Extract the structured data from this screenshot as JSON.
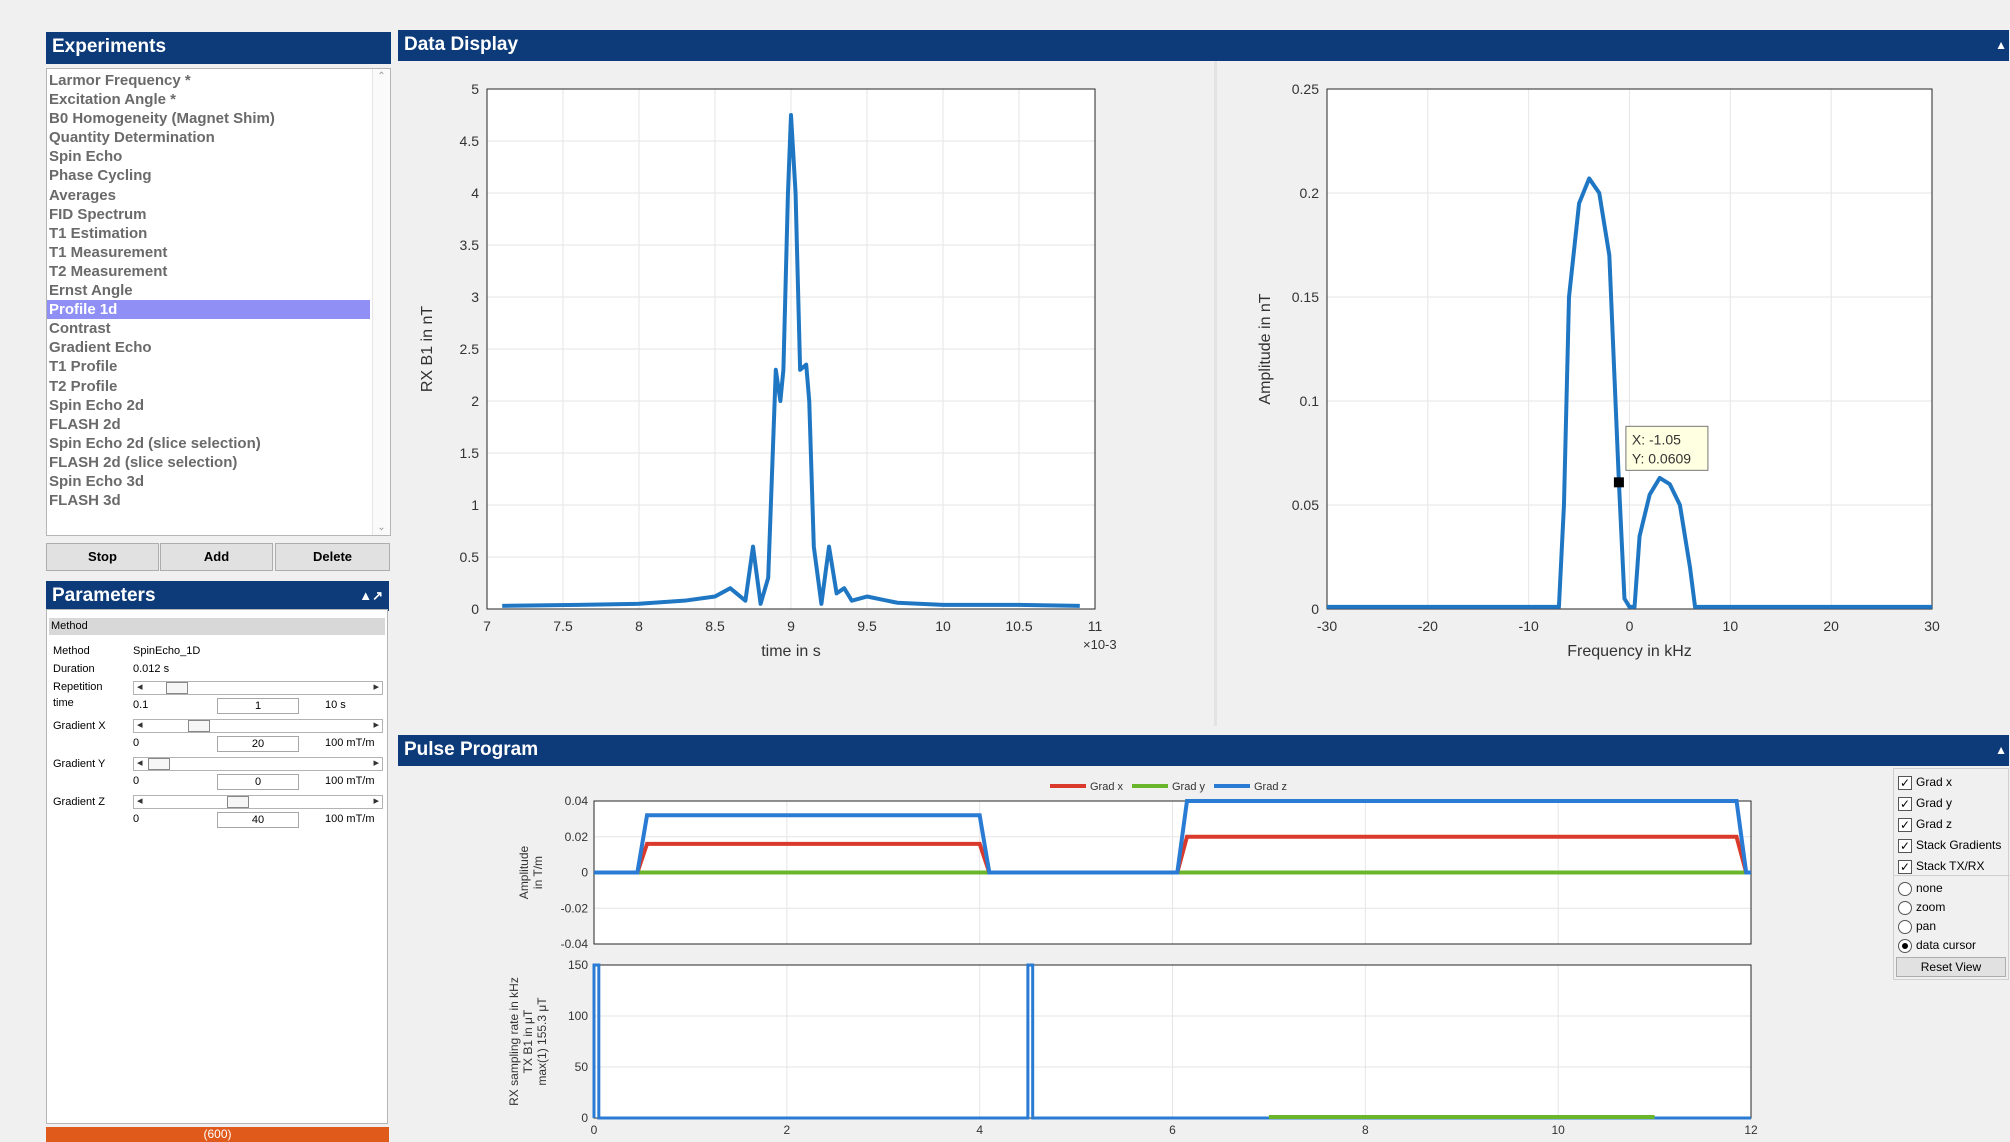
{
  "experiments": {
    "title": "Experiments",
    "items": [
      "Larmor Frequency *",
      "Excitation Angle *",
      "B0 Homogeneity (Magnet Shim)",
      "Quantity Determination",
      "Spin Echo",
      "Phase Cycling",
      "Averages",
      "FID Spectrum",
      "T1 Estimation",
      "T1 Measurement",
      "T2 Measurement",
      "Ernst Angle",
      "Profile 1d",
      "Contrast",
      "Gradient Echo",
      "T1 Profile",
      "T2 Profile",
      "Spin Echo 2d",
      "FLASH 2d",
      "Spin Echo 2d (slice selection)",
      "FLASH 2d (slice selection)",
      "Spin Echo 3d",
      "FLASH 3d"
    ],
    "selected_index": 12,
    "buttons": {
      "stop": "Stop",
      "add": "Add",
      "delete": "Delete"
    }
  },
  "parameters": {
    "title": "Parameters",
    "collapse_icon": "▲↗",
    "section": "Method",
    "method_label": "Method",
    "method_value": "SpinEcho_1D",
    "duration_label": "Duration",
    "duration_value": "0.012 s",
    "repetition_label_1": "Repetition",
    "repetition_label_2": "time",
    "repetition": {
      "min": "0.1",
      "value": "1",
      "max": "10 s",
      "level": 0.09
    },
    "gradient_x": {
      "label": "Gradient X",
      "min": "0",
      "value": "20",
      "max": "100 mT/m",
      "level": 0.2
    },
    "gradient_y": {
      "label": "Gradient Y",
      "min": "0",
      "value": "0",
      "max": "100 mT/m",
      "level": 0.0
    },
    "gradient_z": {
      "label": "Gradient Z",
      "min": "0",
      "value": "40",
      "max": "100 mT/m",
      "level": 0.4
    }
  },
  "bottom_bar_text": "(600)",
  "data_display": {
    "title": "Data Display",
    "collapse_icon": "▲"
  },
  "pulse_program": {
    "title": "Pulse Program",
    "collapse_icon": "▲",
    "legend": [
      "Grad x",
      "Grad y",
      "Grad z"
    ],
    "options": {
      "checkboxes": [
        "Grad x",
        "Grad y",
        "Grad z",
        "Stack Gradients",
        "Stack TX/RX"
      ],
      "radios": [
        "none",
        "zoom",
        "pan",
        "data cursor"
      ],
      "selected_radio": "data cursor",
      "reset_button": "Reset View"
    }
  },
  "colors": {
    "header": "#0d3b7a",
    "trace_blue": "#1f77c4",
    "grad_x": "#d93a2b",
    "grad_y": "#69b62a",
    "grad_z": "#2a7bd4",
    "selection": "#8f8ff6",
    "orange_bar": "#e05a1b"
  },
  "chart_data": [
    {
      "type": "line",
      "xlabel": "time in s",
      "ylabel": "RX B1 in nT",
      "x_multiplier": "×10-3",
      "xlim": [
        7,
        11
      ],
      "ylim": [
        0,
        5
      ],
      "x_ticks": [
        "7",
        "7.5",
        "8",
        "8.5",
        "9",
        "9.5",
        "10",
        "10.5",
        "11"
      ],
      "y_ticks": [
        "0",
        "0.5",
        "1",
        "1.5",
        "2",
        "2.5",
        "3",
        "3.5",
        "4",
        "4.5",
        "5"
      ],
      "grid": true,
      "x": [
        7.1,
        7.6,
        8.0,
        8.3,
        8.5,
        8.6,
        8.7,
        8.75,
        8.8,
        8.85,
        8.9,
        8.93,
        8.95,
        8.98,
        9.0,
        9.03,
        9.06,
        9.1,
        9.12,
        9.15,
        9.2,
        9.25,
        9.3,
        9.35,
        9.4,
        9.5,
        9.7,
        10.0,
        10.5,
        10.9
      ],
      "y": [
        0.03,
        0.04,
        0.05,
        0.08,
        0.12,
        0.2,
        0.08,
        0.6,
        0.05,
        0.3,
        2.3,
        2.0,
        2.3,
        4.0,
        4.75,
        4.0,
        2.3,
        2.35,
        2.0,
        0.6,
        0.05,
        0.6,
        0.15,
        0.2,
        0.08,
        0.12,
        0.06,
        0.04,
        0.04,
        0.03
      ]
    },
    {
      "type": "line",
      "xlabel": "Frequency in kHz",
      "ylabel": "Amplitude in nT",
      "xlim": [
        -30,
        30
      ],
      "ylim": [
        0,
        0.25
      ],
      "x_ticks": [
        "-30",
        "-20",
        "-10",
        "0",
        "10",
        "20",
        "30"
      ],
      "y_ticks": [
        "0",
        "0.05",
        "0.1",
        "0.15",
        "0.2",
        "0.25"
      ],
      "grid": true,
      "x": [
        -30,
        -7,
        -6.5,
        -6,
        -5,
        -4,
        -3,
        -2,
        -1.05,
        -0.5,
        0,
        0.5,
        1,
        2,
        3,
        4,
        5,
        6,
        6.5,
        30
      ],
      "y": [
        0.001,
        0.001,
        0.05,
        0.15,
        0.195,
        0.207,
        0.2,
        0.17,
        0.0609,
        0.005,
        0.001,
        0.001,
        0.035,
        0.055,
        0.063,
        0.06,
        0.05,
        0.02,
        0.001,
        0.001
      ],
      "datatip": {
        "x_text": "X: -1.05",
        "y_text": "Y: 0.0609",
        "x": -1.05,
        "y": 0.0609
      }
    },
    {
      "type": "line",
      "ylabel_1": "Amplitude",
      "ylabel_2": "in T/m",
      "xlim": [
        0,
        12
      ],
      "ylim": [
        -0.04,
        0.04
      ],
      "y_ticks": [
        "0.04",
        "0.02",
        "0",
        "-0.02",
        "-0.04"
      ],
      "grid": true,
      "series": [
        {
          "name": "Grad x",
          "x": [
            0,
            0.45,
            0.55,
            4.0,
            4.1,
            6.05,
            6.15,
            11.85,
            11.95,
            12
          ],
          "y": [
            0,
            0,
            0.016,
            0.016,
            0,
            0,
            0.02,
            0.02,
            0,
            0
          ]
        },
        {
          "name": "Grad y",
          "x": [
            0,
            12
          ],
          "y": [
            0,
            0
          ]
        },
        {
          "name": "Grad z",
          "x": [
            0,
            0.45,
            0.55,
            4.0,
            4.1,
            6.05,
            6.15,
            11.85,
            11.95,
            12
          ],
          "y": [
            0,
            0,
            0.032,
            0.032,
            0,
            0,
            0.04,
            0.04,
            0,
            0
          ]
        }
      ]
    },
    {
      "type": "line",
      "ylabel_1": "RX sampling rate in kHz",
      "ylabel_2": "TX B1 in μT",
      "ylabel_3": "max(1) 155.3 μT",
      "xlim": [
        0,
        12
      ],
      "ylim": [
        0,
        150
      ],
      "x_ticks": [
        "0",
        "2",
        "4",
        "6",
        "8",
        "10",
        "12"
      ],
      "y_ticks": [
        "150",
        "100",
        "50",
        "0"
      ],
      "grid": true,
      "series": [
        {
          "name": "TX B1",
          "x": [
            0,
            0.0,
            0.05,
            0.05,
            4.5,
            4.5,
            4.55,
            4.55,
            12
          ],
          "y": [
            0,
            155,
            155,
            0,
            0,
            155,
            155,
            0,
            0
          ]
        },
        {
          "name": "RX sampling rate",
          "x": [
            7.0,
            11.0
          ],
          "y": [
            0,
            0
          ]
        }
      ]
    }
  ]
}
